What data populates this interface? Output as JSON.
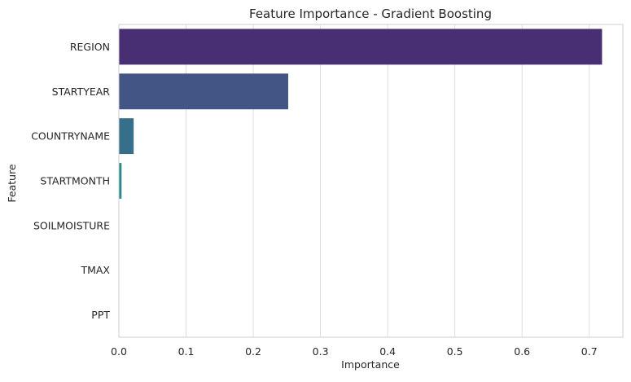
{
  "chart_data": {
    "type": "bar",
    "orientation": "horizontal",
    "title": "Feature Importance - Gradient Boosting",
    "xlabel": "Importance",
    "ylabel": "Feature",
    "xlim": [
      0,
      0.75
    ],
    "xticks": [
      0.0,
      0.1,
      0.2,
      0.3,
      0.4,
      0.5,
      0.6,
      0.7
    ],
    "xtick_labels": [
      "0.0",
      "0.1",
      "0.2",
      "0.3",
      "0.4",
      "0.5",
      "0.6",
      "0.7"
    ],
    "grid": "vertical",
    "categories": [
      "REGION",
      "STARTYEAR",
      "COUNTRYNAME",
      "STARTMONTH",
      "SOILMOISTURE",
      "TMAX",
      "PPT"
    ],
    "values": [
      0.719,
      0.252,
      0.022,
      0.004,
      0.0,
      0.0,
      0.0
    ],
    "colors": [
      "#482f73",
      "#435585",
      "#366f8a",
      "#2a8a8a",
      "#23a47f",
      "#5bbf66",
      "#a8d54a"
    ]
  }
}
